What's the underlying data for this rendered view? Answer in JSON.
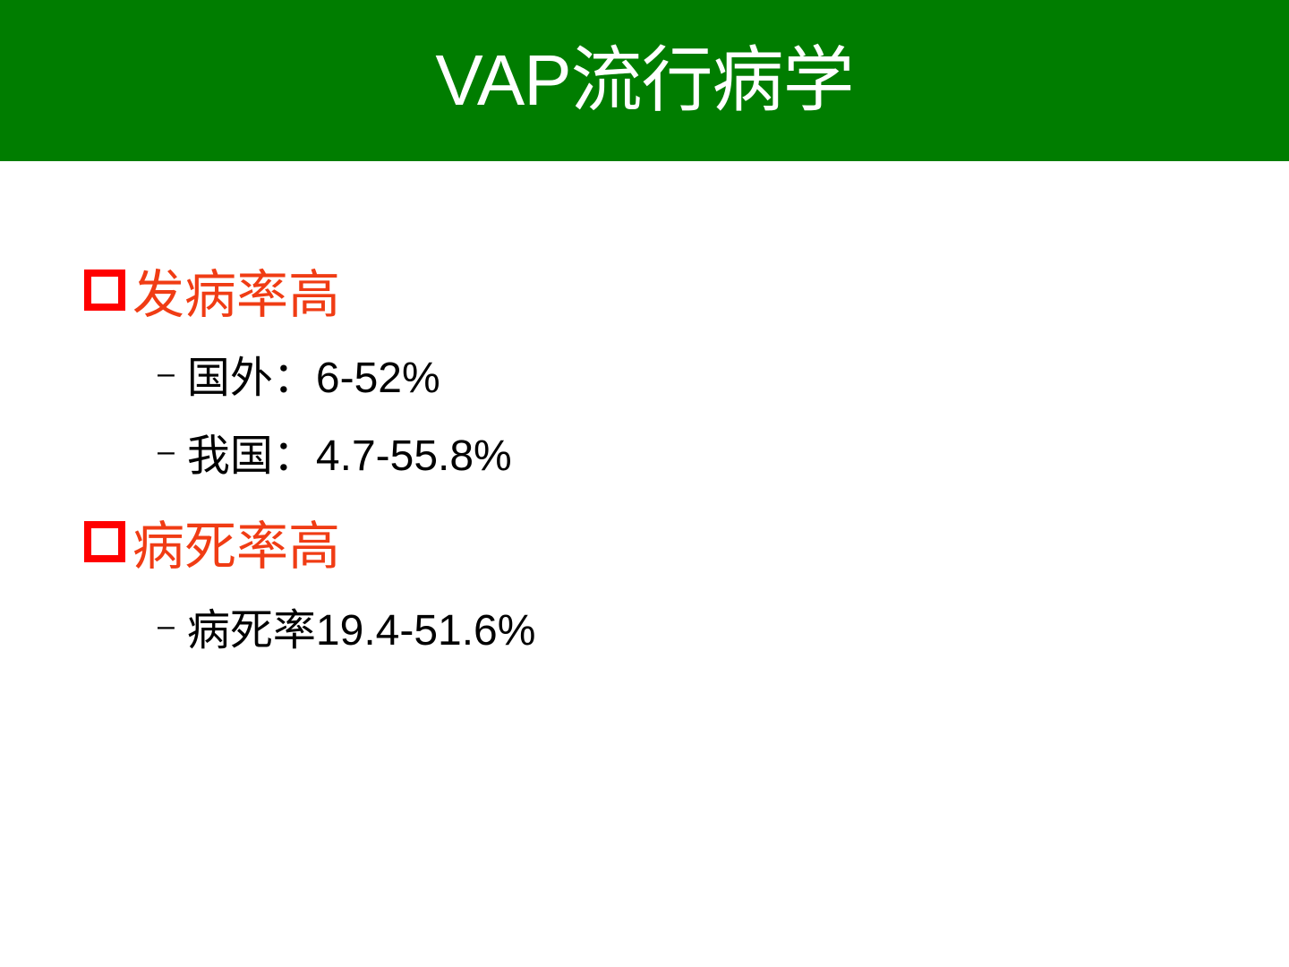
{
  "slide": {
    "title": "VAP流行病学",
    "colors": {
      "header": "#007d00",
      "heading_text": "#f03c14",
      "bullet": "#ff0000"
    },
    "sections": [
      {
        "heading": "发病率高",
        "items": [
          "国外：6-52%",
          "我国：4.7-55.8%"
        ]
      },
      {
        "heading": "病死率高",
        "items": [
          "病死率19.4-51.6%"
        ]
      }
    ],
    "sub_bullet": "–"
  }
}
